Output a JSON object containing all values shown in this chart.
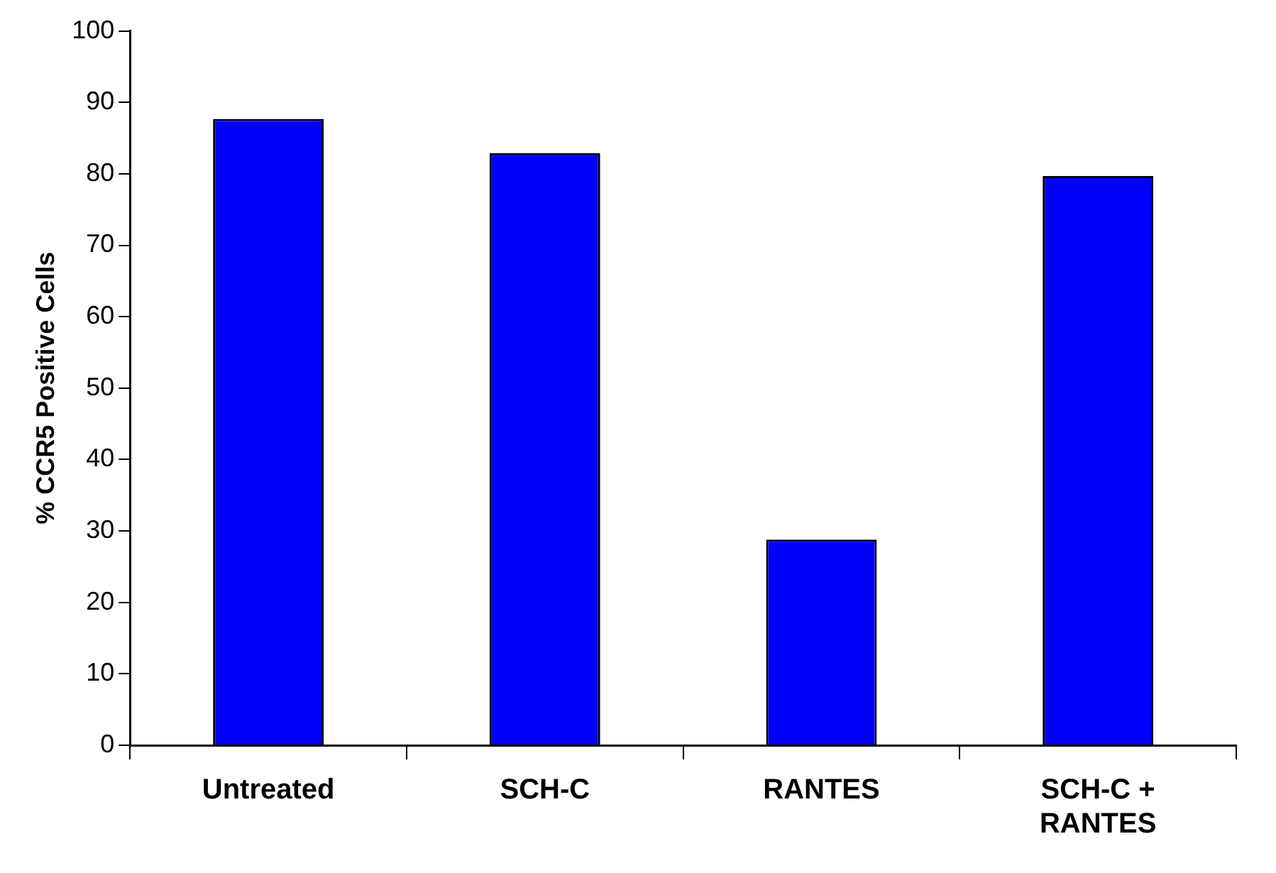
{
  "chart_data": {
    "type": "bar",
    "ylabel": "% CCR5 Positive Cells",
    "categories": [
      "Untreated",
      "SCH-C",
      "RANTES",
      "SCH-C + RANTES"
    ],
    "values": [
      87.7,
      82.9,
      28.8,
      79.7
    ],
    "color": "#0000ff",
    "ylim": [
      0,
      100
    ],
    "yticks": [
      0,
      10,
      20,
      30,
      40,
      50,
      60,
      70,
      80,
      90,
      100
    ],
    "grid": false,
    "legend": false
  }
}
